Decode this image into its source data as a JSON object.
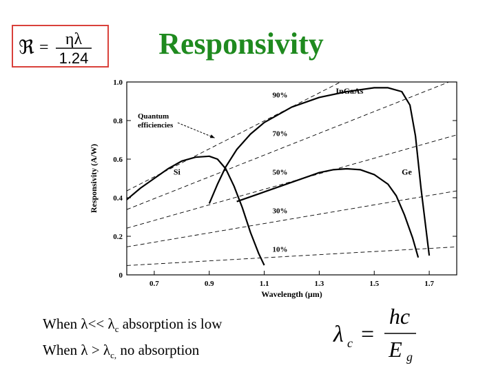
{
  "header": {
    "title": "Responsivity",
    "formula": {
      "lhs": "ℜ",
      "equals": "=",
      "numerator": "ηλ",
      "denominator": "1.24"
    }
  },
  "chart_data": {
    "type": "line",
    "xlabel": "Wavelength (μm)",
    "ylabel": "Responsivity (A/W)",
    "xlim": [
      0.6,
      1.8
    ],
    "ylim": [
      0,
      1.0
    ],
    "x_ticks": [
      0.7,
      0.9,
      1.1,
      1.3,
      1.5,
      1.7
    ],
    "y_ticks": [
      0,
      0.2,
      0.4,
      0.6,
      0.8,
      1.0
    ],
    "y_tick_labels": [
      "0",
      "0.2",
      "0.4",
      "0.6",
      "0.8",
      "1.0"
    ],
    "grid": false,
    "legend": "none",
    "series": [
      {
        "name": "Si",
        "label_at": [
          0.77,
          0.52
        ],
        "x": [
          0.6,
          0.65,
          0.7,
          0.75,
          0.8,
          0.85,
          0.9,
          0.93,
          0.96,
          0.99,
          1.02,
          1.05,
          1.08,
          1.1
        ],
        "y": [
          0.39,
          0.45,
          0.5,
          0.55,
          0.59,
          0.61,
          0.615,
          0.6,
          0.55,
          0.46,
          0.35,
          0.22,
          0.11,
          0.05
        ]
      },
      {
        "name": "InGaAs",
        "label_at": [
          1.36,
          0.94
        ],
        "x": [
          0.9,
          0.93,
          0.96,
          1.0,
          1.05,
          1.1,
          1.2,
          1.3,
          1.4,
          1.5,
          1.55,
          1.6,
          1.63,
          1.65,
          1.67,
          1.7
        ],
        "y": [
          0.37,
          0.47,
          0.56,
          0.65,
          0.73,
          0.79,
          0.87,
          0.92,
          0.95,
          0.97,
          0.97,
          0.95,
          0.88,
          0.72,
          0.45,
          0.1
        ]
      },
      {
        "name": "Ge",
        "label_at": [
          1.6,
          0.52
        ],
        "x": [
          1.0,
          1.1,
          1.2,
          1.3,
          1.35,
          1.4,
          1.45,
          1.5,
          1.55,
          1.58,
          1.61,
          1.64,
          1.66
        ],
        "y": [
          0.38,
          0.43,
          0.48,
          0.53,
          0.545,
          0.55,
          0.545,
          0.52,
          0.47,
          0.41,
          0.31,
          0.19,
          0.09
        ]
      }
    ],
    "efficiency_lines": [
      {
        "label": "90%",
        "eta": 0.9,
        "label_at": [
          1.13,
          0.92
        ]
      },
      {
        "label": "70%",
        "eta": 0.7,
        "label_at": [
          1.13,
          0.72
        ]
      },
      {
        "label": "50%",
        "eta": 0.5,
        "label_at": [
          1.13,
          0.52
        ]
      },
      {
        "label": "30%",
        "eta": 0.3,
        "label_at": [
          1.13,
          0.32
        ]
      },
      {
        "label": "10%",
        "eta": 0.1,
        "label_at": [
          1.13,
          0.12
        ]
      }
    ],
    "annotation": {
      "lines": [
        "Quantum",
        "efficiencies"
      ],
      "text_at": [
        0.64,
        0.81
      ],
      "arrow_to": [
        0.92,
        0.71
      ]
    }
  },
  "notes": {
    "line1": {
      "before": "When λ<< λ",
      "sub": "c",
      "after": " absorption is low"
    },
    "line2": {
      "before": "When λ > λ",
      "sub": "c,",
      "after": " no absorption"
    }
  },
  "equation": {
    "lhs": "λ",
    "lhs_sub": "c",
    "equals": "=",
    "numerator": "hc",
    "denominator": "E",
    "denominator_sub": "g"
  }
}
